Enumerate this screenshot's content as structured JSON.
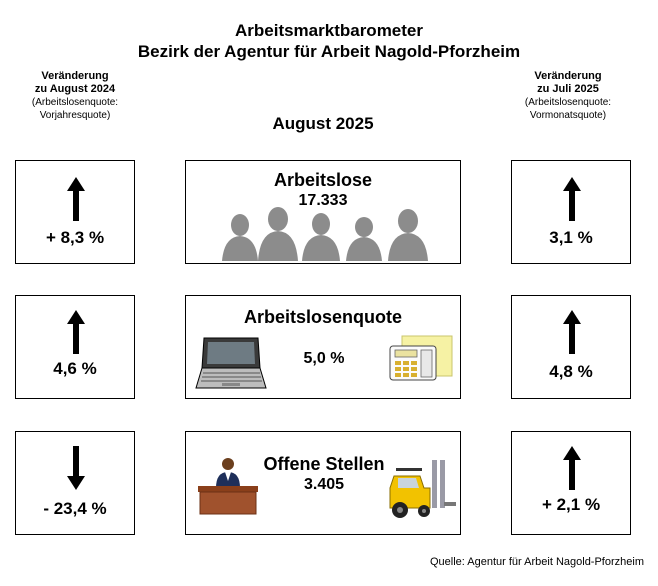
{
  "header": {
    "title_line1": "Arbeitsmarktbarometer",
    "title_line2": "Bezirk der Agentur für Arbeit Nagold-Pforzheim",
    "month": "August 2025"
  },
  "left_column": {
    "heading_line1": "Veränderung",
    "heading_line2": "zu August 2024",
    "sub_line1": "(Arbeitslosenquote:",
    "sub_line2": "Vorjahresquote)"
  },
  "right_column": {
    "heading_line1": "Veränderung",
    "heading_line2": "zu Juli 2025",
    "sub_line1": "(Arbeitslosenquote:",
    "sub_line2": "Vormonatsquote)"
  },
  "rows": [
    {
      "label": "Arbeitslose",
      "value": "17.333",
      "left_change": "+ 8,3 %",
      "left_direction": "up",
      "right_change": "3,1 %",
      "right_direction": "up",
      "illustration": "people-silhouettes-icon"
    },
    {
      "label": "Arbeitslosenquote",
      "value": "5,0 %",
      "left_change": "4,6 %",
      "left_direction": "up",
      "right_change": "4,8 %",
      "right_direction": "up",
      "illustration": "laptop-and-calculator-icon"
    },
    {
      "label": "Offene Stellen",
      "value": "3.405",
      "left_change": "- 23,4 %",
      "left_direction": "down",
      "right_change": "+ 2,1 %",
      "right_direction": "up",
      "illustration": "office-worker-and-forklift-icon"
    }
  ],
  "footer": {
    "source": "Quelle: Agentur für Arbeit Nagold-Pforzheim"
  },
  "colors": {
    "silhouette": "#8c8c8c",
    "arrow": "#000000",
    "desk": "#a0522d",
    "forklift": "#f2c200"
  }
}
